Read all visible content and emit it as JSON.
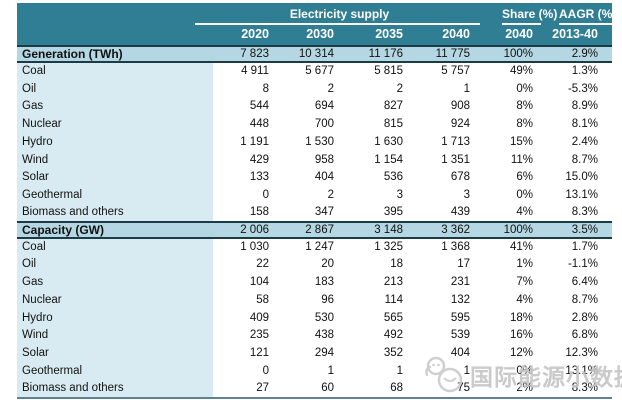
{
  "chart_data": {
    "type": "table",
    "col_groups": {
      "supply": "Electricity supply",
      "share": "Share (%)",
      "aagr": "AAGR (%)"
    },
    "columns": [
      "2020",
      "2030",
      "2035",
      "2040",
      "2040",
      "2013-40"
    ],
    "sections": [
      {
        "title": "Generation (TWh)",
        "totals": [
          "7 823",
          "10 314",
          "11 176",
          "11 775",
          "100%",
          "2.9%"
        ],
        "rows": [
          {
            "label": "Coal",
            "values": [
              "4 911",
              "5 677",
              "5 815",
              "5 757",
              "49%",
              "1.3%"
            ]
          },
          {
            "label": "Oil",
            "values": [
              "8",
              "2",
              "2",
              "1",
              "0%",
              "-5.3%"
            ]
          },
          {
            "label": "Gas",
            "values": [
              "544",
              "694",
              "827",
              "908",
              "8%",
              "8.9%"
            ]
          },
          {
            "label": "Nuclear",
            "values": [
              "448",
              "700",
              "815",
              "924",
              "8%",
              "8.1%"
            ]
          },
          {
            "label": "Hydro",
            "values": [
              "1 191",
              "1 530",
              "1 630",
              "1 713",
              "15%",
              "2.4%"
            ]
          },
          {
            "label": "Wind",
            "values": [
              "429",
              "958",
              "1 154",
              "1 351",
              "11%",
              "8.7%"
            ]
          },
          {
            "label": "Solar",
            "values": [
              "133",
              "404",
              "536",
              "678",
              "6%",
              "15.0%"
            ]
          },
          {
            "label": "Geothermal",
            "values": [
              "0",
              "2",
              "3",
              "3",
              "0%",
              "13.1%"
            ]
          },
          {
            "label": "Biomass and others",
            "values": [
              "158",
              "347",
              "395",
              "439",
              "4%",
              "8.3%"
            ]
          }
        ]
      },
      {
        "title": "Capacity (GW)",
        "totals": [
          "2 006",
          "2 867",
          "3 148",
          "3 362",
          "100%",
          "3.5%"
        ],
        "rows": [
          {
            "label": "Coal",
            "values": [
              "1 030",
              "1 247",
              "1 325",
              "1 368",
              "41%",
              "1.7%"
            ]
          },
          {
            "label": "Oil",
            "values": [
              "22",
              "20",
              "18",
              "17",
              "1%",
              "-1.1%"
            ]
          },
          {
            "label": "Gas",
            "values": [
              "104",
              "183",
              "213",
              "231",
              "7%",
              "6.4%"
            ]
          },
          {
            "label": "Nuclear",
            "values": [
              "58",
              "96",
              "114",
              "132",
              "4%",
              "8.7%"
            ]
          },
          {
            "label": "Hydro",
            "values": [
              "409",
              "530",
              "565",
              "595",
              "18%",
              "2.8%"
            ]
          },
          {
            "label": "Wind",
            "values": [
              "235",
              "438",
              "492",
              "539",
              "16%",
              "6.8%"
            ]
          },
          {
            "label": "Solar",
            "values": [
              "121",
              "294",
              "352",
              "404",
              "12%",
              "12.3%"
            ]
          },
          {
            "label": "Geothermal",
            "values": [
              "0",
              "1",
              "1",
              "1",
              "0%",
              "13.1%"
            ]
          },
          {
            "label": "Biomass and others",
            "values": [
              "27",
              "60",
              "68",
              "75",
              "2%",
              "8.3%"
            ]
          }
        ]
      }
    ]
  },
  "watermark": {
    "text": "国际能源小数据"
  },
  "colors": {
    "header_teal": "#2f7e93",
    "section_band": "#b5d7e3",
    "label_column": "#d9ebf2",
    "dark_rule": "#1b3c47",
    "bottom_rule": "#5d8493",
    "watermark_gray": "#c6c6c6"
  }
}
